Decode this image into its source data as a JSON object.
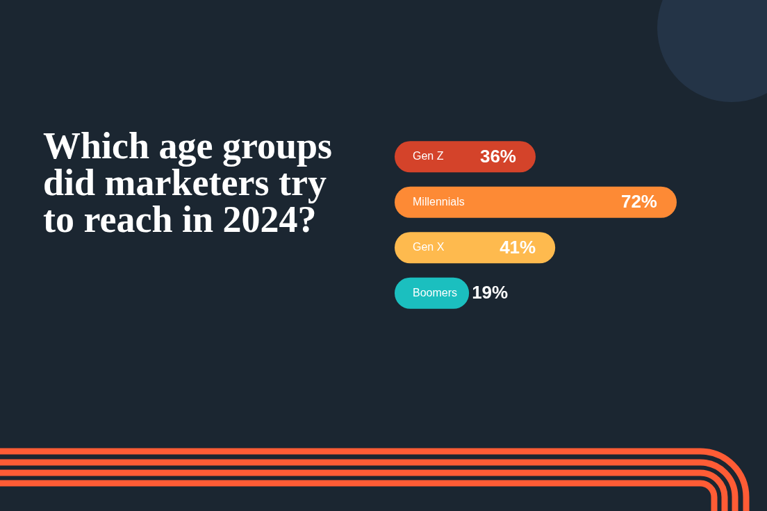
{
  "chart_data": {
    "type": "bar",
    "orientation": "horizontal",
    "title": "Which age groups did marketers try to reach in 2024?",
    "categories": [
      "Gen Z",
      "Millennials",
      "Gen X",
      "Boomers"
    ],
    "values": [
      36,
      72,
      41,
      19
    ],
    "colors": [
      "#d4432a",
      "#fd8a35",
      "#feba4e",
      "#1bbfbf"
    ],
    "value_labels": [
      "36%",
      "72%",
      "41%",
      "19%"
    ]
  }
}
